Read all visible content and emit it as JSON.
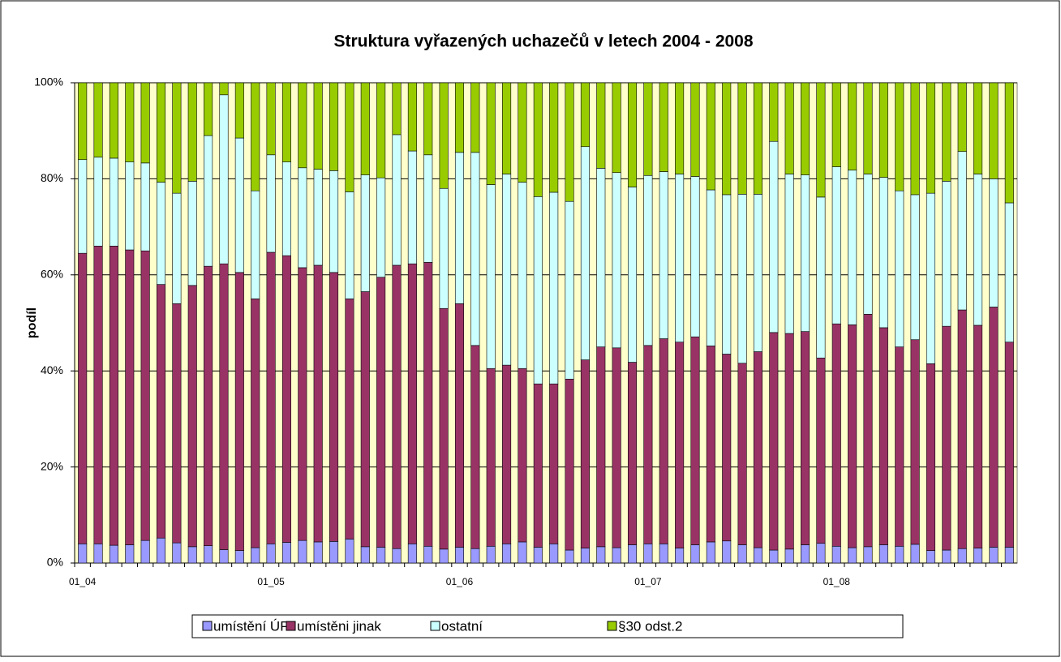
{
  "chart_data": {
    "type": "stacked_bar_percent",
    "title": "Struktura vyřazených uchazečů v letech 2004 - 2008",
    "y_label": "podíl",
    "categories": [
      "01_04",
      null,
      null,
      null,
      null,
      null,
      null,
      null,
      null,
      null,
      null,
      null,
      "01_05",
      null,
      null,
      null,
      null,
      null,
      null,
      null,
      null,
      null,
      null,
      null,
      "01_06",
      null,
      null,
      null,
      null,
      null,
      null,
      null,
      null,
      null,
      null,
      null,
      "01_07",
      null,
      null,
      null,
      null,
      null,
      null,
      null,
      null,
      null,
      null,
      null,
      "01_08",
      null,
      null,
      null,
      null,
      null,
      null,
      null,
      null,
      null,
      null,
      null
    ],
    "series": [
      {
        "name": "umístění ÚP",
        "color": "#9999ff",
        "values": [
          4,
          4,
          3.7,
          3.8,
          4.7,
          5.2,
          4.2,
          3.4,
          3.6,
          2.8,
          2.6,
          3.2,
          4,
          4.3,
          4.7,
          4.4,
          4.5,
          5,
          3.4,
          3.3,
          3,
          4,
          3.5,
          2.9,
          3.3,
          3,
          3.5,
          4,
          4.4,
          3.3,
          4,
          2.7,
          3.1,
          3.4,
          3.2,
          3.8,
          4,
          4,
          3.1,
          3.8,
          4.4,
          4.6,
          3.8,
          3.2,
          2.7,
          2.9,
          3.8,
          4.1,
          3.5,
          3.2,
          3.4,
          3.8,
          3.5,
          3.9,
          2.6,
          2.7,
          3,
          3.1,
          3.3,
          3.3
        ]
      },
      {
        "name": "umístěni jinak",
        "color": "#993366",
        "values": [
          60.5,
          62,
          62.3,
          61.4,
          60.3,
          52.8,
          49.8,
          54.4,
          58.2,
          59.5,
          57.9,
          51.8,
          60.7,
          59.7,
          56.8,
          57.6,
          56,
          50,
          53.1,
          56.2,
          59,
          58.3,
          59.1,
          50.1,
          50.7,
          42.3,
          37,
          37.2,
          36.1,
          34,
          33.3,
          35.6,
          39.2,
          41.6,
          41.6,
          38,
          41.3,
          42.7,
          42.9,
          43.3,
          40.8,
          38.9,
          37.8,
          40.8,
          45.3,
          44.9,
          44.4,
          38.6,
          46.3,
          46.4,
          48.4,
          45.2,
          41.5,
          42.6,
          38.9,
          46.6,
          49.7,
          46.4,
          50,
          42.7
        ]
      },
      {
        "name": "ostatní",
        "color": "#ccffff",
        "values": [
          19.5,
          18.5,
          18.3,
          18.3,
          18.3,
          21.3,
          23,
          21.7,
          27.2,
          35.2,
          28,
          22.5,
          20.3,
          19.5,
          20.8,
          20,
          21.2,
          22.3,
          24.3,
          20.7,
          27.2,
          23.5,
          22.4,
          25,
          31.5,
          40.2,
          38.3,
          39.8,
          38.8,
          39,
          39.9,
          37,
          44.4,
          37.2,
          36.5,
          36.5,
          35.4,
          34.8,
          35,
          33.4,
          32.5,
          33.2,
          35.2,
          32.8,
          39.8,
          33.2,
          32.6,
          33.5,
          32.7,
          32.2,
          29.2,
          31.3,
          32.5,
          30.2,
          35.5,
          30.2,
          33,
          31.5,
          26.7,
          29
        ]
      },
      {
        "name": "§30 odst.2",
        "color": "#99cc00",
        "values": [
          16,
          15.5,
          15.7,
          16.5,
          16.7,
          20.7,
          23,
          20.5,
          11,
          2.5,
          11.5,
          22.5,
          15,
          16.5,
          17.7,
          18,
          18.3,
          22.7,
          19.2,
          19.8,
          10.8,
          14.2,
          15,
          22,
          14.5,
          14.5,
          21.2,
          19,
          20.7,
          23.7,
          22.8,
          24.7,
          13.3,
          17.8,
          18.7,
          21.7,
          19.3,
          18.5,
          19,
          19.5,
          22.3,
          23.3,
          23.2,
          23.2,
          12.2,
          19,
          19.2,
          23.8,
          17.5,
          18.2,
          19,
          19.7,
          22.5,
          23.3,
          23,
          20.5,
          14.3,
          19,
          20,
          25
        ]
      }
    ],
    "ylim": [
      0,
      100
    ],
    "yticks": [
      {
        "value": 0,
        "label": "0%"
      },
      {
        "value": 20,
        "label": "20%"
      },
      {
        "value": 40,
        "label": "40%"
      },
      {
        "value": 60,
        "label": "60%"
      },
      {
        "value": 80,
        "label": "80%"
      },
      {
        "value": 100,
        "label": "100%"
      }
    ],
    "grid": true,
    "plot_background": "#ffffcc",
    "legend": "bottom"
  }
}
